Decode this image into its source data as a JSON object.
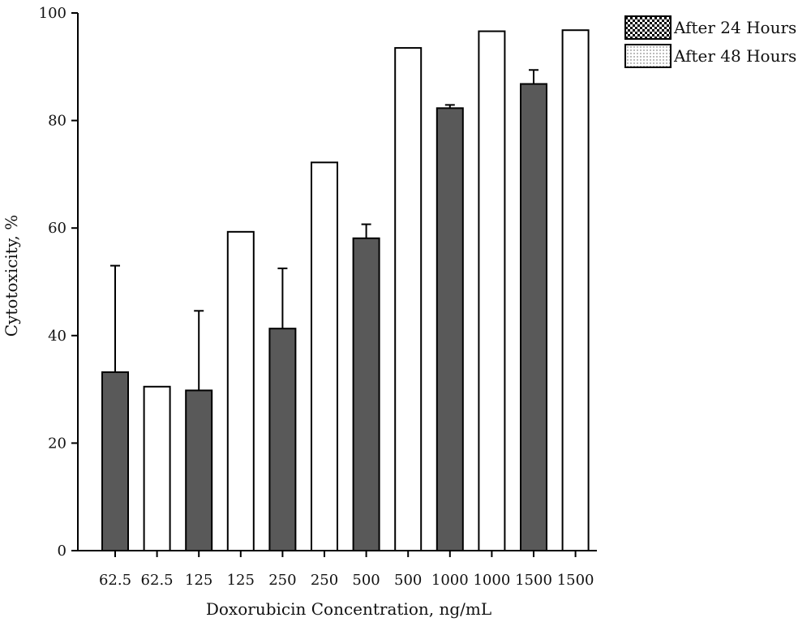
{
  "chart_data": {
    "type": "bar",
    "title": "",
    "xlabel": "Doxorubicin Concentration, ng/mL",
    "ylabel": "Cytotoxicity, %",
    "ylim": [
      0,
      100
    ],
    "yticks": [
      0,
      20,
      40,
      60,
      80,
      100
    ],
    "categories": [
      "62.5",
      "62.5",
      "125",
      "125",
      "250",
      "250",
      "500",
      "500",
      "1000",
      "1000",
      "1500",
      "1500"
    ],
    "bar_series": [
      "After 24 Hours",
      "After 48 Hours",
      "After 24 Hours",
      "After 48 Hours",
      "After 24 Hours",
      "After 48 Hours",
      "After 24 Hours",
      "After 48 Hours",
      "After 24 Hours",
      "After 48 Hours",
      "After 24 Hours",
      "After 48 Hours"
    ],
    "values": [
      33.2,
      30.5,
      29.8,
      59.3,
      41.3,
      72.2,
      58.1,
      93.5,
      82.3,
      96.6,
      86.8,
      96.8
    ],
    "error_upper": [
      53.0,
      null,
      44.6,
      null,
      52.5,
      null,
      60.7,
      null,
      82.9,
      null,
      89.4,
      null
    ],
    "series": [
      {
        "name": "After 24 Hours",
        "color": "#595959"
      },
      {
        "name": "After 48 Hours",
        "color": "#ffffff"
      }
    ],
    "legend_position": "top-right",
    "grid": false
  }
}
